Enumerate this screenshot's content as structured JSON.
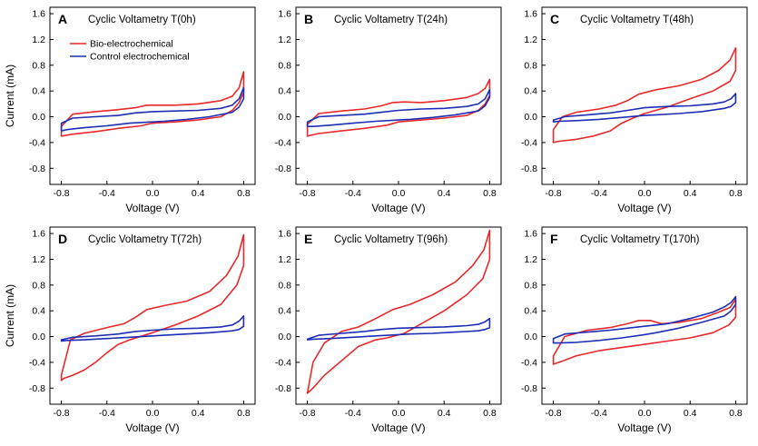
{
  "chart_data": [
    {
      "type": "line",
      "panel": "A",
      "title": "Cyclic Voltametry T(0h)",
      "xlabel": "Voltage (V)",
      "ylabel": "Current (mA)",
      "xlim": [
        -0.9,
        0.9
      ],
      "ylim": [
        -1.05,
        1.7
      ],
      "xticks": [
        -0.8,
        -0.4,
        0.0,
        0.4,
        0.8
      ],
      "xtick_labels": [
        "-0.8",
        "-0.4",
        "0.0",
        "0.4",
        "0.8"
      ],
      "yticks": [
        -0.8,
        -0.4,
        0.0,
        0.4,
        0.8,
        1.2,
        1.6
      ],
      "ytick_labels": [
        "-0.8",
        "-0.4",
        "0.0",
        "0.4",
        "0.8",
        "1.2",
        "1.6"
      ],
      "legend": true,
      "series": [
        {
          "name": "Bio-electrochemical",
          "color": "#e8282b",
          "x": [
            -0.8,
            -0.7,
            -0.5,
            -0.3,
            -0.15,
            -0.05,
            0.05,
            0.2,
            0.4,
            0.6,
            0.7,
            0.76,
            0.8,
            0.8,
            0.76,
            0.7,
            0.6,
            0.4,
            0.2,
            0.0,
            -0.1,
            -0.3,
            -0.5,
            -0.7,
            -0.8,
            -0.8
          ],
          "y": [
            -0.15,
            0.04,
            0.08,
            0.11,
            0.14,
            0.18,
            0.18,
            0.18,
            0.2,
            0.25,
            0.32,
            0.45,
            0.7,
            0.38,
            0.22,
            0.1,
            0.0,
            -0.05,
            -0.08,
            -0.1,
            -0.14,
            -0.18,
            -0.23,
            -0.27,
            -0.3,
            -0.15
          ]
        },
        {
          "name": "Control electrochemical",
          "color": "#1e2db4",
          "x": [
            -0.8,
            -0.7,
            -0.5,
            -0.3,
            -0.15,
            0.0,
            0.2,
            0.4,
            0.6,
            0.7,
            0.76,
            0.8,
            0.8,
            0.76,
            0.7,
            0.5,
            0.3,
            0.1,
            0.0,
            -0.2,
            -0.4,
            -0.6,
            -0.75,
            -0.8,
            -0.8
          ],
          "y": [
            -0.1,
            -0.02,
            0.0,
            0.02,
            0.06,
            0.08,
            0.09,
            0.1,
            0.13,
            0.18,
            0.28,
            0.45,
            0.28,
            0.15,
            0.07,
            0.0,
            -0.04,
            -0.07,
            -0.08,
            -0.1,
            -0.14,
            -0.17,
            -0.2,
            -0.22,
            -0.1
          ]
        }
      ]
    },
    {
      "type": "line",
      "panel": "B",
      "title": "Cyclic Voltametry T(24h)",
      "xlabel": "Voltage (V)",
      "ylabel": "",
      "xlim": [
        -0.9,
        0.9
      ],
      "ylim": [
        -1.05,
        1.7
      ],
      "xticks": [
        -0.8,
        -0.4,
        0.0,
        0.4,
        0.8
      ],
      "xtick_labels": [
        "-0.8",
        "-0.4",
        "0.0",
        "0.4",
        "0.8"
      ],
      "yticks": [
        -0.8,
        -0.4,
        0.0,
        0.4,
        0.8,
        1.2,
        1.6
      ],
      "ytick_labels": [
        "-0.8",
        "-0.4",
        "0.0",
        "0.4",
        "0.8",
        "1.2",
        "1.6"
      ],
      "legend": false,
      "series": [
        {
          "name": "Bio-electrochemical",
          "color": "#e8282b",
          "x": [
            -0.8,
            -0.7,
            -0.5,
            -0.3,
            -0.15,
            -0.05,
            0.05,
            0.2,
            0.4,
            0.6,
            0.7,
            0.76,
            0.8,
            0.8,
            0.76,
            0.7,
            0.6,
            0.4,
            0.2,
            0.0,
            -0.1,
            -0.3,
            -0.5,
            -0.7,
            -0.8,
            -0.8
          ],
          "y": [
            -0.12,
            0.05,
            0.09,
            0.12,
            0.17,
            0.22,
            0.23,
            0.22,
            0.25,
            0.3,
            0.36,
            0.44,
            0.58,
            0.33,
            0.2,
            0.1,
            0.02,
            -0.02,
            -0.05,
            -0.08,
            -0.13,
            -0.18,
            -0.22,
            -0.26,
            -0.3,
            -0.12
          ]
        },
        {
          "name": "Control electrochemical",
          "color": "#1e2db4",
          "x": [
            -0.8,
            -0.7,
            -0.5,
            -0.3,
            -0.15,
            0.0,
            0.2,
            0.4,
            0.6,
            0.7,
            0.76,
            0.8,
            0.8,
            0.76,
            0.7,
            0.5,
            0.3,
            0.1,
            0.0,
            -0.2,
            -0.4,
            -0.6,
            -0.75,
            -0.8,
            -0.8
          ],
          "y": [
            -0.08,
            0.0,
            0.02,
            0.04,
            0.07,
            0.1,
            0.12,
            0.13,
            0.16,
            0.2,
            0.28,
            0.42,
            0.3,
            0.17,
            0.09,
            0.03,
            -0.01,
            -0.04,
            -0.05,
            -0.07,
            -0.1,
            -0.13,
            -0.15,
            -0.15,
            -0.08
          ]
        }
      ]
    },
    {
      "type": "line",
      "panel": "C",
      "title": "Cyclic Voltametry T(48h)",
      "xlabel": "Voltage (V)",
      "ylabel": "",
      "xlim": [
        -0.9,
        0.9
      ],
      "ylim": [
        -1.05,
        1.7
      ],
      "xticks": [
        -0.8,
        -0.4,
        0.0,
        0.4,
        0.8
      ],
      "xtick_labels": [
        "-0.8",
        "-0.4",
        "0.0",
        "0.4",
        "0.8"
      ],
      "yticks": [
        -0.8,
        -0.4,
        0.0,
        0.4,
        0.8,
        1.2,
        1.6
      ],
      "ytick_labels": [
        "-0.8",
        "-0.4",
        "0.0",
        "0.4",
        "0.8",
        "1.2",
        "1.6"
      ],
      "legend": false,
      "series": [
        {
          "name": "Bio-electrochemical",
          "color": "#e8282b",
          "x": [
            -0.8,
            -0.72,
            -0.6,
            -0.4,
            -0.25,
            -0.15,
            -0.05,
            0.1,
            0.3,
            0.5,
            0.65,
            0.75,
            0.8,
            0.8,
            0.75,
            0.6,
            0.4,
            0.2,
            0.0,
            -0.1,
            -0.2,
            -0.3,
            -0.45,
            -0.6,
            -0.75,
            -0.8,
            -0.8
          ],
          "y": [
            -0.2,
            0.0,
            0.07,
            0.12,
            0.18,
            0.25,
            0.35,
            0.42,
            0.48,
            0.58,
            0.72,
            0.88,
            1.07,
            0.72,
            0.55,
            0.4,
            0.28,
            0.15,
            0.05,
            -0.02,
            -0.1,
            -0.22,
            -0.3,
            -0.35,
            -0.38,
            -0.4,
            -0.2
          ]
        },
        {
          "name": "Control electrochemical",
          "color": "#1e2db4",
          "x": [
            -0.8,
            -0.7,
            -0.5,
            -0.3,
            -0.15,
            0.0,
            0.2,
            0.4,
            0.6,
            0.7,
            0.76,
            0.8,
            0.8,
            0.76,
            0.7,
            0.5,
            0.3,
            0.1,
            0.0,
            -0.2,
            -0.4,
            -0.6,
            -0.75,
            -0.8,
            -0.8
          ],
          "y": [
            -0.05,
            0.0,
            0.03,
            0.06,
            0.1,
            0.14,
            0.16,
            0.17,
            0.2,
            0.23,
            0.28,
            0.36,
            0.22,
            0.16,
            0.13,
            0.08,
            0.05,
            0.03,
            0.02,
            -0.01,
            -0.04,
            -0.06,
            -0.07,
            -0.08,
            -0.05
          ]
        }
      ]
    },
    {
      "type": "line",
      "panel": "D",
      "title": "Cyclic Voltametry T(72h)",
      "xlabel": "Voltage (V)",
      "ylabel": "Current (mA)",
      "xlim": [
        -0.9,
        0.9
      ],
      "ylim": [
        -1.05,
        1.7
      ],
      "xticks": [
        -0.8,
        -0.4,
        0.0,
        0.4,
        0.8
      ],
      "xtick_labels": [
        "-0.8",
        "-0.4",
        "0.0",
        "0.4",
        "0.8"
      ],
      "yticks": [
        -0.8,
        -0.4,
        0.0,
        0.4,
        0.8,
        1.2,
        1.6
      ],
      "ytick_labels": [
        "-0.8",
        "-0.4",
        "0.0",
        "0.4",
        "0.8",
        "1.2",
        "1.6"
      ],
      "legend": false,
      "series": [
        {
          "name": "Bio-electrochemical",
          "color": "#e8282b",
          "x": [
            -0.8,
            -0.72,
            -0.6,
            -0.4,
            -0.25,
            -0.15,
            -0.05,
            0.1,
            0.3,
            0.5,
            0.65,
            0.75,
            0.8,
            0.8,
            0.74,
            0.6,
            0.4,
            0.2,
            0.0,
            -0.2,
            -0.3,
            -0.4,
            -0.5,
            -0.6,
            -0.7,
            -0.78,
            -0.8,
            -0.8
          ],
          "y": [
            -0.6,
            -0.05,
            0.05,
            0.14,
            0.2,
            0.3,
            0.42,
            0.48,
            0.55,
            0.7,
            0.95,
            1.25,
            1.58,
            1.1,
            0.8,
            0.5,
            0.32,
            0.18,
            0.06,
            -0.05,
            -0.12,
            -0.25,
            -0.4,
            -0.52,
            -0.6,
            -0.65,
            -0.68,
            -0.6
          ]
        },
        {
          "name": "Control electrochemical",
          "color": "#1e2db4",
          "x": [
            -0.8,
            -0.7,
            -0.5,
            -0.3,
            -0.15,
            0.0,
            0.2,
            0.4,
            0.6,
            0.7,
            0.76,
            0.8,
            0.8,
            0.76,
            0.7,
            0.5,
            0.3,
            0.1,
            0.0,
            -0.2,
            -0.4,
            -0.6,
            -0.75,
            -0.8,
            -0.8
          ],
          "y": [
            -0.05,
            -0.01,
            0.01,
            0.04,
            0.08,
            0.1,
            0.12,
            0.13,
            0.15,
            0.18,
            0.24,
            0.32,
            0.16,
            0.11,
            0.09,
            0.06,
            0.04,
            0.02,
            0.01,
            -0.01,
            -0.03,
            -0.05,
            -0.06,
            -0.07,
            -0.05
          ]
        }
      ]
    },
    {
      "type": "line",
      "panel": "E",
      "title": "Cyclic Voltametry T(96h)",
      "xlabel": "Voltage (V)",
      "ylabel": "",
      "xlim": [
        -0.9,
        0.9
      ],
      "ylim": [
        -1.05,
        1.7
      ],
      "xticks": [
        -0.8,
        -0.4,
        0.0,
        0.4,
        0.8
      ],
      "xtick_labels": [
        "-0.8",
        "-0.4",
        "0.0",
        "0.4",
        "0.8"
      ],
      "yticks": [
        -0.8,
        -0.4,
        0.0,
        0.4,
        0.8,
        1.2,
        1.6
      ],
      "ytick_labels": [
        "-0.8",
        "-0.4",
        "0.0",
        "0.4",
        "0.8",
        "1.2",
        "1.6"
      ],
      "legend": false,
      "series": [
        {
          "name": "Bio-electrochemical",
          "color": "#e8282b",
          "x": [
            -0.8,
            -0.75,
            -0.65,
            -0.5,
            -0.35,
            -0.2,
            -0.05,
            0.1,
            0.3,
            0.5,
            0.65,
            0.75,
            0.8,
            0.8,
            0.74,
            0.6,
            0.4,
            0.2,
            0.05,
            -0.1,
            -0.2,
            -0.35,
            -0.45,
            -0.55,
            -0.65,
            -0.75,
            -0.8,
            -0.8
          ],
          "y": [
            -0.88,
            -0.4,
            -0.1,
            0.08,
            0.15,
            0.28,
            0.42,
            0.5,
            0.65,
            0.85,
            1.1,
            1.35,
            1.65,
            1.2,
            0.9,
            0.65,
            0.4,
            0.2,
            0.05,
            -0.02,
            -0.05,
            -0.15,
            -0.3,
            -0.45,
            -0.6,
            -0.8,
            -0.88,
            -0.88
          ]
        },
        {
          "name": "Control electrochemical",
          "color": "#1e2db4",
          "x": [
            -0.8,
            -0.7,
            -0.5,
            -0.3,
            -0.15,
            0.0,
            0.2,
            0.4,
            0.6,
            0.7,
            0.76,
            0.8,
            0.8,
            0.76,
            0.7,
            0.5,
            0.3,
            0.1,
            0.0,
            -0.2,
            -0.4,
            -0.6,
            -0.75,
            -0.8,
            -0.8
          ],
          "y": [
            -0.04,
            0.02,
            0.05,
            0.08,
            0.11,
            0.13,
            0.14,
            0.15,
            0.17,
            0.19,
            0.23,
            0.28,
            0.14,
            0.11,
            0.09,
            0.07,
            0.05,
            0.04,
            0.03,
            0.01,
            -0.01,
            -0.03,
            -0.04,
            -0.05,
            -0.04
          ]
        }
      ]
    },
    {
      "type": "line",
      "panel": "F",
      "title": "Cyclic Voltametry T(170h)",
      "xlabel": "Voltage (V)",
      "ylabel": "",
      "xlim": [
        -0.9,
        0.9
      ],
      "ylim": [
        -1.05,
        1.7
      ],
      "xticks": [
        -0.8,
        -0.4,
        0.0,
        0.4,
        0.8
      ],
      "xtick_labels": [
        "-0.8",
        "-0.4",
        "0.0",
        "0.4",
        "0.8"
      ],
      "yticks": [
        -0.8,
        -0.4,
        0.0,
        0.4,
        0.8,
        1.2,
        1.6
      ],
      "ytick_labels": [
        "-0.8",
        "-0.4",
        "0.0",
        "0.4",
        "0.8",
        "1.2",
        "1.6"
      ],
      "legend": false,
      "series": [
        {
          "name": "Bio-electrochemical",
          "color": "#e8282b",
          "x": [
            -0.8,
            -0.7,
            -0.5,
            -0.3,
            -0.15,
            -0.05,
            0.05,
            0.15,
            0.3,
            0.5,
            0.65,
            0.75,
            0.8,
            0.8,
            0.74,
            0.6,
            0.4,
            0.2,
            0.0,
            -0.2,
            -0.4,
            -0.6,
            -0.72,
            -0.8,
            -0.8
          ],
          "y": [
            -0.3,
            0.0,
            0.1,
            0.14,
            0.2,
            0.25,
            0.25,
            0.2,
            0.22,
            0.28,
            0.38,
            0.45,
            0.58,
            0.3,
            0.18,
            0.06,
            -0.02,
            -0.07,
            -0.12,
            -0.17,
            -0.22,
            -0.3,
            -0.38,
            -0.43,
            -0.3
          ]
        },
        {
          "name": "Control electrochemical",
          "color": "#1e2db4",
          "x": [
            -0.8,
            -0.7,
            -0.5,
            -0.3,
            -0.15,
            0.0,
            0.2,
            0.4,
            0.6,
            0.7,
            0.76,
            0.8,
            0.8,
            0.76,
            0.7,
            0.5,
            0.3,
            0.1,
            0.0,
            -0.2,
            -0.4,
            -0.6,
            -0.75,
            -0.8,
            -0.8
          ],
          "y": [
            -0.03,
            0.04,
            0.07,
            0.1,
            0.13,
            0.16,
            0.2,
            0.28,
            0.38,
            0.46,
            0.53,
            0.62,
            0.5,
            0.4,
            0.32,
            0.22,
            0.13,
            0.06,
            0.03,
            -0.02,
            -0.06,
            -0.09,
            -0.1,
            -0.1,
            -0.03
          ]
        }
      ]
    }
  ]
}
